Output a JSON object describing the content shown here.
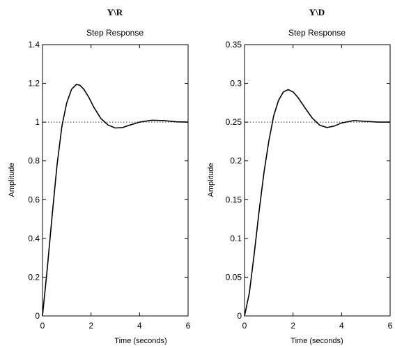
{
  "chart_data": [
    {
      "type": "line",
      "title": "Y\\R",
      "subtitle": "Step Response",
      "xlabel": "Time (seconds)",
      "ylabel": "Amplitude",
      "xlim": [
        0,
        6
      ],
      "ylim": [
        0,
        1.4
      ],
      "xticks": [
        "0",
        "2",
        "4",
        "6"
      ],
      "yticks": [
        "0",
        "0.2",
        "0.4",
        "0.6",
        "0.8",
        "1",
        "1.2",
        "1.4"
      ],
      "grid": false,
      "steady_state": 1.0,
      "series": [
        {
          "x": [
            0,
            0.2,
            0.4,
            0.6,
            0.8,
            1.0,
            1.2,
            1.4,
            1.55,
            1.7,
            1.9,
            2.1,
            2.4,
            2.7,
            3.0,
            3.3,
            3.6,
            4.0,
            4.5,
            5.0,
            5.5,
            6.0
          ],
          "y": [
            0,
            0.25,
            0.52,
            0.78,
            0.98,
            1.1,
            1.17,
            1.195,
            1.19,
            1.17,
            1.13,
            1.08,
            1.02,
            0.985,
            0.97,
            0.972,
            0.985,
            1.0,
            1.01,
            1.008,
            1.002,
            1.0
          ]
        }
      ]
    },
    {
      "type": "line",
      "title": "Y\\D",
      "subtitle": "Step Response",
      "xlabel": "Time (seconds)",
      "ylabel": "Amplitude",
      "xlim": [
        0,
        6
      ],
      "ylim": [
        0,
        0.35
      ],
      "xticks": [
        "0",
        "2",
        "4",
        "6"
      ],
      "yticks": [
        "0",
        "0.05",
        "0.1",
        "0.15",
        "0.2",
        "0.25",
        "0.3",
        "0.35"
      ],
      "grid": false,
      "steady_state": 0.25,
      "series": [
        {
          "x": [
            0,
            0.2,
            0.4,
            0.6,
            0.8,
            1.0,
            1.2,
            1.4,
            1.6,
            1.8,
            2.0,
            2.2,
            2.5,
            2.8,
            3.1,
            3.4,
            3.7,
            4.0,
            4.5,
            5.0,
            5.5,
            6.0
          ],
          "y": [
            0,
            0.03,
            0.08,
            0.135,
            0.185,
            0.225,
            0.258,
            0.278,
            0.289,
            0.292,
            0.289,
            0.282,
            0.268,
            0.255,
            0.246,
            0.243,
            0.245,
            0.249,
            0.252,
            0.251,
            0.25,
            0.25
          ]
        }
      ]
    }
  ]
}
